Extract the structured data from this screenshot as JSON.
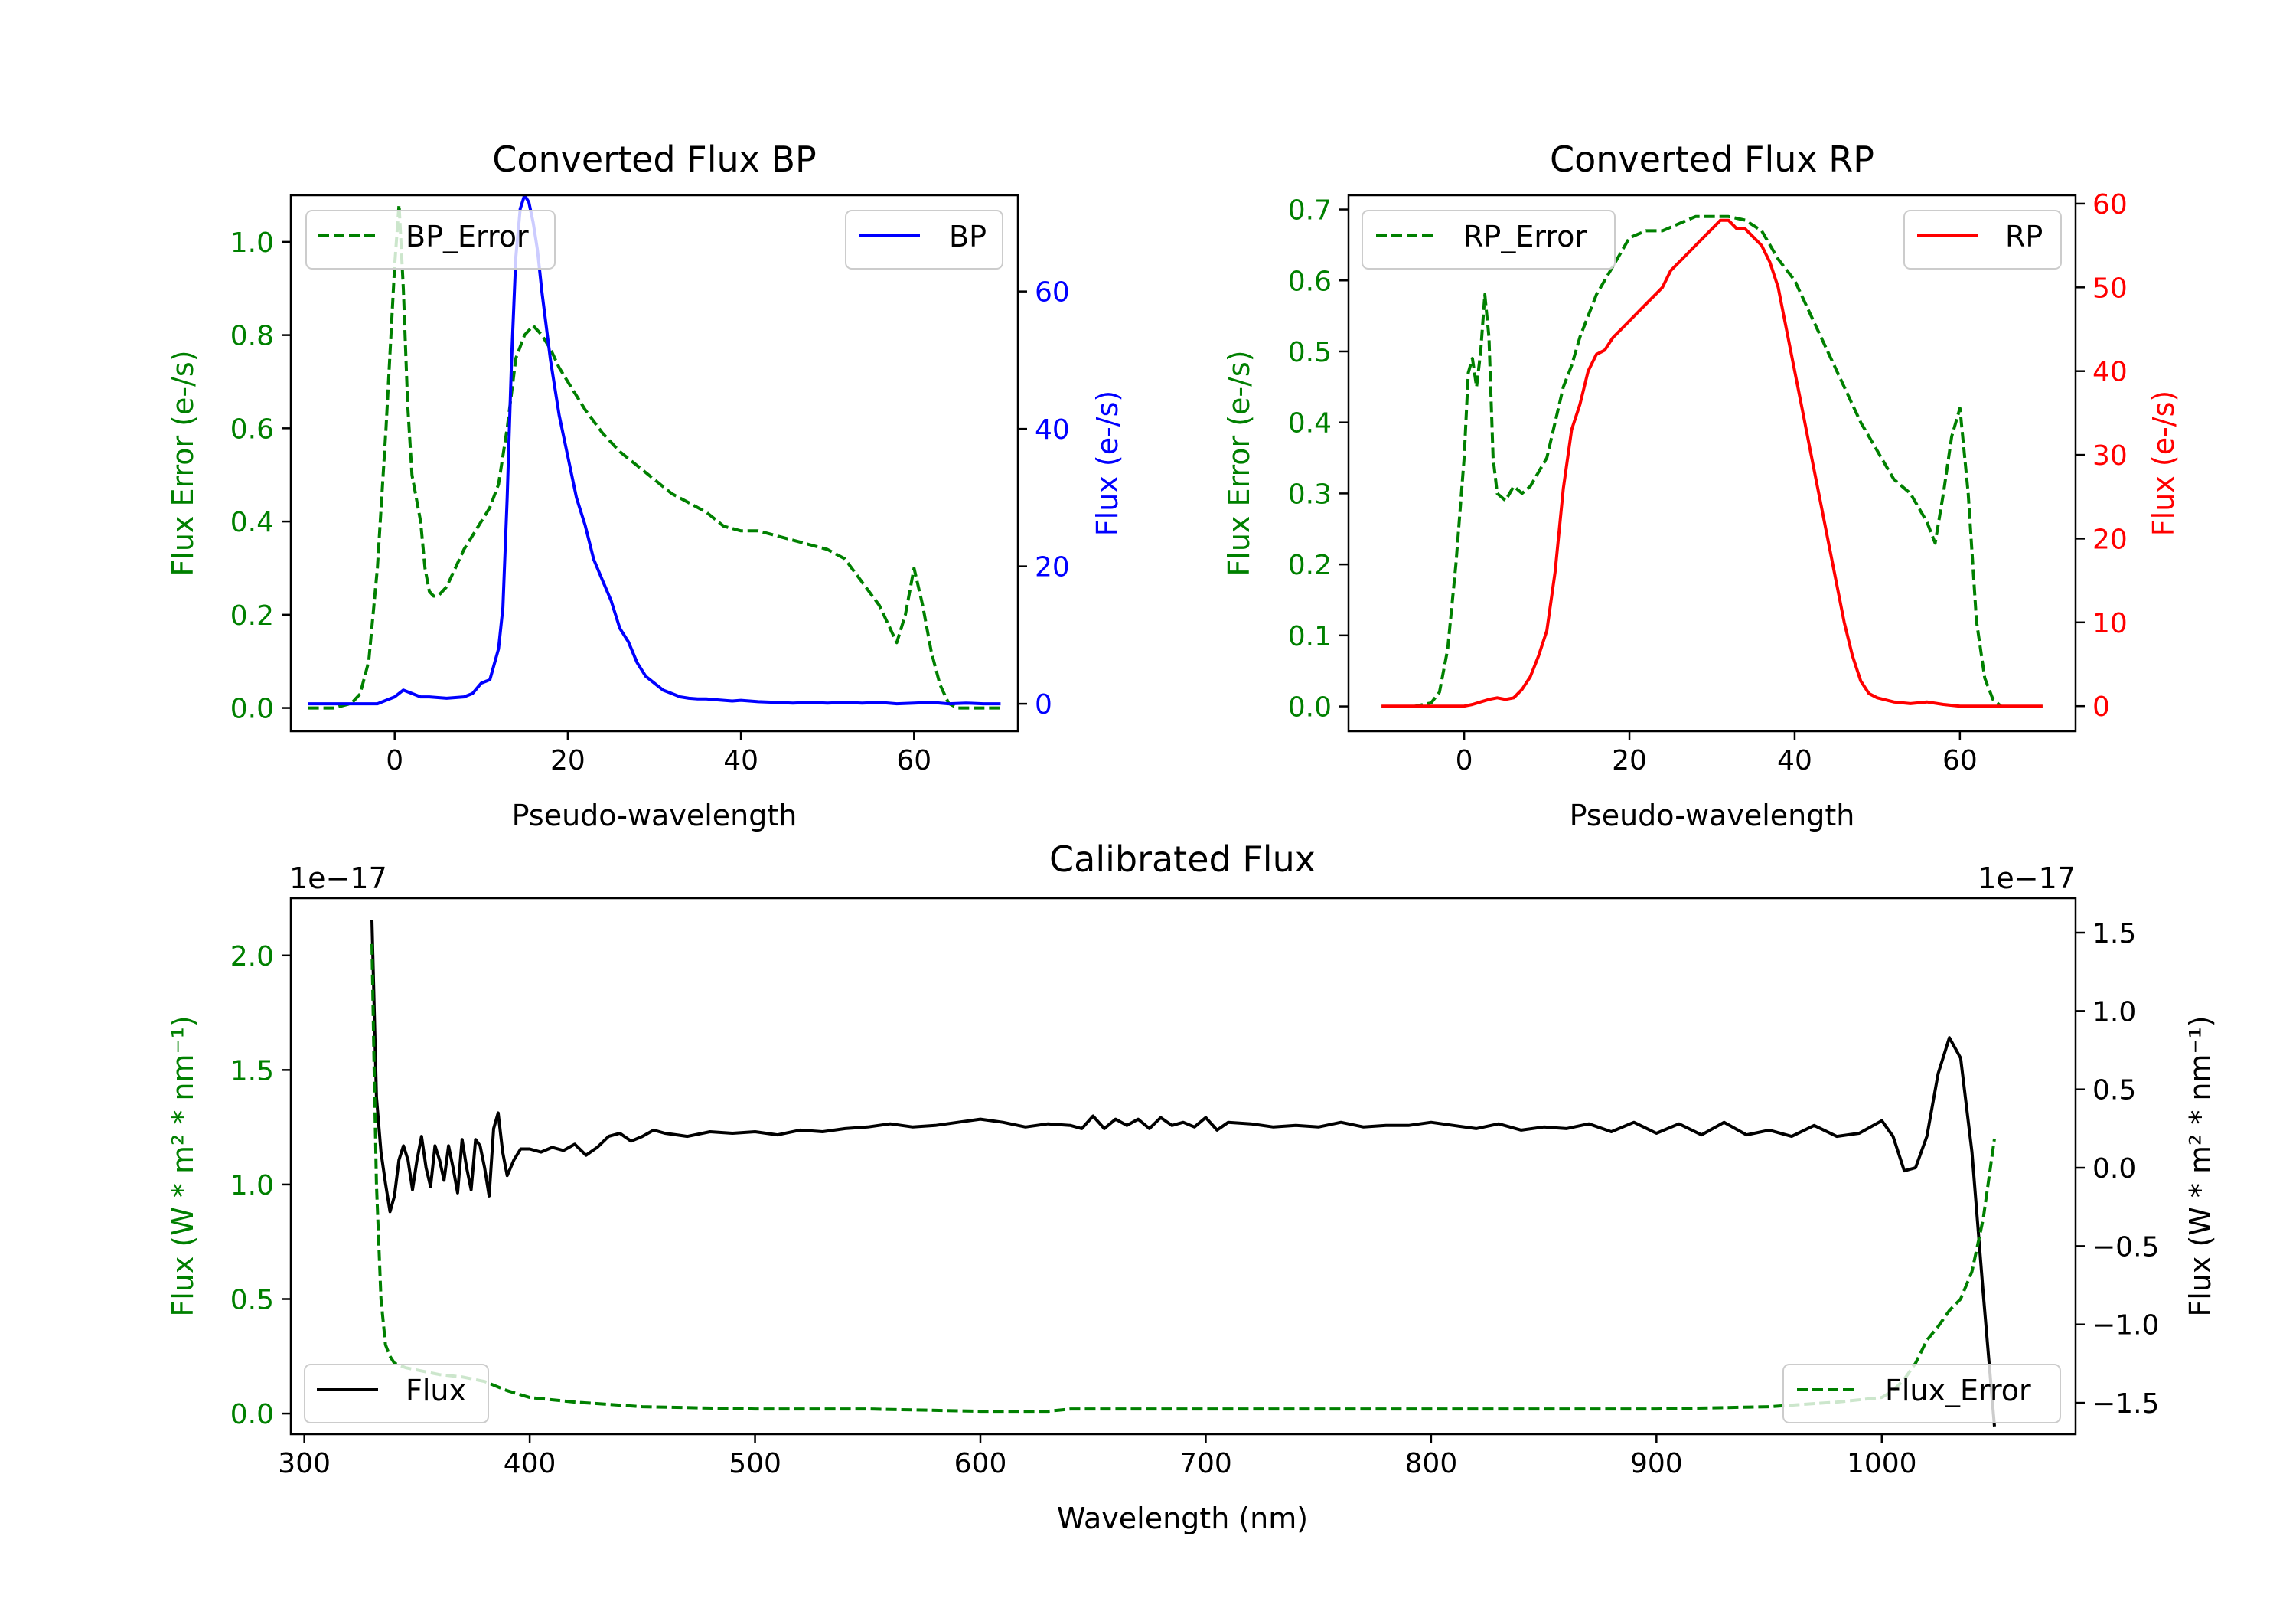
{
  "colors": {
    "error": "#008000",
    "bp": "#0000ff",
    "rp": "#ff0000",
    "flux": "#000000"
  },
  "chart_data": [
    {
      "type": "line",
      "title": "Converted Flux BP",
      "xlabel": "Pseudo-wavelength",
      "ylabel_left": "Flux Error (e-/s)",
      "ylabel_right": "Flux (e-/s)",
      "xlim": [
        -12,
        72
      ],
      "ylim_left": [
        -0.05,
        1.1
      ],
      "ylim_right": [
        -4,
        74
      ],
      "xticks": [
        0,
        20,
        40,
        60
      ],
      "xtick_labels": [
        "0",
        "20",
        "40",
        "60"
      ],
      "yticks_left": [
        0.0,
        0.2,
        0.4,
        0.6,
        0.8,
        1.0
      ],
      "ytick_labels_left": [
        "0.0",
        "0.2",
        "0.4",
        "0.6",
        "0.8",
        "1.0"
      ],
      "yticks_right": [
        0,
        20,
        40,
        60
      ],
      "ytick_labels_right": [
        "0",
        "20",
        "40",
        "60"
      ],
      "legend": [
        {
          "label": "BP_Error",
          "loc": "upper-left",
          "style": "dashed",
          "color": "#008000"
        },
        {
          "label": "BP",
          "loc": "upper-right",
          "style": "solid",
          "color": "#0000ff"
        }
      ],
      "series": [
        {
          "name": "BP_Error",
          "axis": "left",
          "style": "dashed",
          "color": "#008000",
          "x": [
            -10,
            -7,
            -5,
            -4,
            -3,
            -2,
            -1,
            0,
            0.5,
            1,
            1.5,
            2,
            2.5,
            3,
            3.5,
            4,
            4.5,
            5,
            6,
            7,
            8,
            9,
            10,
            11,
            12,
            13,
            14,
            15,
            16,
            17,
            18,
            19,
            20,
            22,
            24,
            26,
            28,
            30,
            32,
            34,
            36,
            38,
            40,
            42,
            44,
            46,
            48,
            50,
            52,
            54,
            56,
            57,
            58,
            59,
            60,
            61,
            62,
            63,
            64,
            65,
            66,
            68,
            70
          ],
          "y": [
            0.0,
            0.0,
            0.01,
            0.03,
            0.1,
            0.3,
            0.6,
            0.95,
            1.08,
            0.9,
            0.65,
            0.5,
            0.45,
            0.4,
            0.3,
            0.25,
            0.24,
            0.24,
            0.26,
            0.3,
            0.34,
            0.37,
            0.4,
            0.43,
            0.48,
            0.6,
            0.75,
            0.8,
            0.82,
            0.8,
            0.77,
            0.73,
            0.7,
            0.64,
            0.59,
            0.55,
            0.52,
            0.49,
            0.46,
            0.44,
            0.42,
            0.39,
            0.38,
            0.38,
            0.37,
            0.36,
            0.35,
            0.34,
            0.32,
            0.27,
            0.22,
            0.18,
            0.14,
            0.2,
            0.3,
            0.22,
            0.12,
            0.05,
            0.01,
            0.0,
            0.0,
            0.0,
            0.0
          ]
        },
        {
          "name": "BP",
          "axis": "right",
          "style": "solid",
          "color": "#0000ff",
          "x": [
            -10,
            -6,
            -2,
            0,
            1,
            2,
            3,
            4,
            6,
            8,
            9,
            10,
            11,
            12,
            12.5,
            13,
            13.5,
            14,
            14.5,
            15,
            15.5,
            16,
            16.5,
            17,
            18,
            19,
            20,
            21,
            22,
            23,
            24,
            25,
            26,
            27,
            28,
            29,
            30,
            31,
            32,
            33,
            34,
            35,
            36,
            37,
            38,
            39,
            40,
            42,
            44,
            46,
            48,
            50,
            52,
            54,
            56,
            58,
            60,
            62,
            64,
            66,
            68,
            70
          ],
          "y": [
            0,
            0,
            0,
            1,
            2,
            1.5,
            1,
            1,
            0.8,
            1,
            1.5,
            3,
            3.5,
            8,
            14,
            30,
            50,
            65,
            72,
            74,
            73,
            70,
            66,
            60,
            50,
            42,
            36,
            30,
            26,
            21,
            18,
            15,
            11,
            9,
            6,
            4,
            3,
            2,
            1.5,
            1,
            0.8,
            0.7,
            0.7,
            0.6,
            0.5,
            0.4,
            0.5,
            0.3,
            0.2,
            0.1,
            0.2,
            0.1,
            0.2,
            0.1,
            0.2,
            0,
            0.1,
            0.2,
            0,
            0.1,
            0,
            0
          ]
        }
      ]
    },
    {
      "type": "line",
      "title": "Converted Flux RP",
      "xlabel": "Pseudo-wavelength",
      "ylabel_left": "Flux Error (e-/s)",
      "ylabel_right": "Flux (e-/s)",
      "xlim": [
        -14,
        74
      ],
      "ylim_left": [
        -0.035,
        0.72
      ],
      "ylim_right": [
        -3,
        61
      ],
      "xticks": [
        0,
        20,
        40,
        60
      ],
      "xtick_labels": [
        "0",
        "20",
        "40",
        "60"
      ],
      "yticks_left": [
        0.0,
        0.1,
        0.2,
        0.3,
        0.4,
        0.5,
        0.6,
        0.7
      ],
      "ytick_labels_left": [
        "0.0",
        "0.1",
        "0.2",
        "0.3",
        "0.4",
        "0.5",
        "0.6",
        "0.7"
      ],
      "yticks_right": [
        0,
        10,
        20,
        30,
        40,
        50,
        60
      ],
      "ytick_labels_right": [
        "0",
        "10",
        "20",
        "30",
        "40",
        "50",
        "60"
      ],
      "legend": [
        {
          "label": "RP_Error",
          "loc": "upper-left",
          "style": "dashed",
          "color": "#008000"
        },
        {
          "label": "RP",
          "loc": "upper-right",
          "style": "solid",
          "color": "#ff0000"
        }
      ],
      "series": [
        {
          "name": "RP_Error",
          "axis": "left",
          "style": "dashed",
          "color": "#008000",
          "x": [
            -10,
            -6,
            -4,
            -3,
            -2,
            -1,
            0,
            0.5,
            1,
            1.5,
            2,
            2.5,
            3,
            3.5,
            4,
            5,
            6,
            7,
            8,
            9,
            10,
            11,
            12,
            13,
            14,
            15,
            16,
            17,
            18,
            19,
            20,
            22,
            24,
            26,
            28,
            30,
            32,
            34,
            36,
            38,
            40,
            42,
            44,
            46,
            48,
            50,
            52,
            54,
            55,
            56,
            57,
            58,
            59,
            60,
            61,
            62,
            63,
            64,
            65,
            66,
            68,
            70
          ],
          "y": [
            0.0,
            0.0,
            0.005,
            0.02,
            0.08,
            0.2,
            0.35,
            0.47,
            0.49,
            0.45,
            0.5,
            0.58,
            0.52,
            0.35,
            0.3,
            0.29,
            0.31,
            0.3,
            0.31,
            0.33,
            0.35,
            0.4,
            0.45,
            0.48,
            0.52,
            0.55,
            0.58,
            0.6,
            0.62,
            0.64,
            0.66,
            0.67,
            0.67,
            0.68,
            0.69,
            0.69,
            0.69,
            0.685,
            0.67,
            0.63,
            0.6,
            0.55,
            0.5,
            0.45,
            0.4,
            0.36,
            0.32,
            0.3,
            0.28,
            0.26,
            0.23,
            0.3,
            0.38,
            0.42,
            0.3,
            0.12,
            0.04,
            0.01,
            0.0,
            0.0,
            0.0,
            0.0
          ]
        },
        {
          "name": "RP",
          "axis": "right",
          "style": "solid",
          "color": "#ff0000",
          "x": [
            -10,
            -6,
            -2,
            0,
            1,
            2,
            3,
            4,
            5,
            6,
            7,
            8,
            9,
            10,
            11,
            12,
            13,
            14,
            15,
            16,
            17,
            18,
            19,
            20,
            21,
            22,
            23,
            24,
            25,
            26,
            27,
            28,
            29,
            30,
            31,
            32,
            33,
            34,
            35,
            36,
            37,
            38,
            39,
            40,
            41,
            42,
            43,
            44,
            45,
            46,
            47,
            48,
            49,
            50,
            52,
            54,
            56,
            58,
            60,
            62,
            64,
            66,
            68,
            70
          ],
          "y": [
            0,
            0,
            0,
            0,
            0.2,
            0.5,
            0.8,
            1,
            0.8,
            1,
            2,
            3.5,
            6,
            9,
            16,
            26,
            33,
            36,
            40,
            42,
            42.5,
            44,
            45,
            46,
            47,
            48,
            49,
            50,
            52,
            53,
            54,
            55,
            56,
            57,
            58,
            58,
            57,
            57,
            56,
            55,
            53,
            50,
            45,
            40,
            35,
            30,
            25,
            20,
            15,
            10,
            6,
            3,
            1.5,
            1,
            0.5,
            0.3,
            0.5,
            0.2,
            0,
            0,
            0,
            0,
            0,
            0
          ]
        }
      ]
    },
    {
      "type": "line",
      "title": "Calibrated Flux",
      "xlabel": "Wavelength (nm)",
      "ylabel_left": "Flux (W * m² * nm⁻¹)",
      "ylabel_right": "Flux (W * m² * nm⁻¹)",
      "offset_left": "1e−17",
      "offset_right": "1e−17",
      "xlim": [
        294,
        1086
      ],
      "ylim_left": [
        -0.09,
        2.25
      ],
      "ylim_right": [
        -1.7,
        1.72
      ],
      "xticks": [
        300,
        400,
        500,
        600,
        700,
        800,
        900,
        1000
      ],
      "xtick_labels": [
        "300",
        "400",
        "500",
        "600",
        "700",
        "800",
        "900",
        "1000"
      ],
      "yticks_left": [
        0.0,
        0.5,
        1.0,
        1.5,
        2.0
      ],
      "ytick_labels_left": [
        "0.0",
        "0.5",
        "1.0",
        "1.5",
        "2.0"
      ],
      "yticks_right": [
        -1.5,
        -1.0,
        -0.5,
        0.0,
        0.5,
        1.0,
        1.5
      ],
      "ytick_labels_right": [
        "−1.5",
        "−1.0",
        "−0.5",
        "0.0",
        "0.5",
        "1.0",
        "1.5"
      ],
      "legend": [
        {
          "label": "Flux",
          "loc": "lower-left",
          "style": "solid",
          "color": "#000000"
        },
        {
          "label": "Flux_Error",
          "loc": "lower-right",
          "style": "dashed",
          "color": "#008000"
        }
      ],
      "series": [
        {
          "name": "Flux",
          "axis": "right",
          "style": "solid",
          "color": "#000000",
          "x": [
            330,
            332,
            334,
            336,
            338,
            340,
            342,
            344,
            346,
            348,
            350,
            352,
            354,
            356,
            358,
            360,
            362,
            364,
            366,
            368,
            370,
            372,
            374,
            376,
            378,
            380,
            382,
            384,
            386,
            388,
            390,
            393,
            396,
            400,
            405,
            410,
            415,
            420,
            425,
            430,
            435,
            440,
            445,
            450,
            455,
            460,
            470,
            480,
            490,
            500,
            510,
            520,
            530,
            540,
            550,
            560,
            570,
            580,
            590,
            600,
            610,
            620,
            630,
            640,
            645,
            650,
            655,
            660,
            665,
            670,
            675,
            680,
            685,
            690,
            695,
            700,
            705,
            710,
            720,
            730,
            740,
            750,
            760,
            770,
            780,
            790,
            800,
            810,
            820,
            830,
            840,
            850,
            860,
            870,
            880,
            890,
            900,
            910,
            920,
            930,
            940,
            950,
            960,
            970,
            980,
            990,
            1000,
            1005,
            1010,
            1015,
            1020,
            1025,
            1030,
            1035,
            1040,
            1045,
            1050
          ],
          "y": [
            1.58,
            0.45,
            0.1,
            -0.1,
            -0.28,
            -0.18,
            0.05,
            0.14,
            0.05,
            -0.14,
            0.05,
            0.2,
            0.0,
            -0.12,
            0.14,
            0.05,
            -0.08,
            0.14,
            0.0,
            -0.16,
            0.18,
            0.0,
            -0.14,
            0.18,
            0.14,
            0.0,
            -0.18,
            0.25,
            0.35,
            0.1,
            -0.05,
            0.05,
            0.12,
            0.12,
            0.1,
            0.13,
            0.11,
            0.15,
            0.08,
            0.13,
            0.2,
            0.22,
            0.17,
            0.2,
            0.24,
            0.22,
            0.2,
            0.23,
            0.22,
            0.23,
            0.21,
            0.24,
            0.23,
            0.25,
            0.26,
            0.28,
            0.26,
            0.27,
            0.29,
            0.31,
            0.29,
            0.26,
            0.28,
            0.27,
            0.25,
            0.33,
            0.25,
            0.31,
            0.27,
            0.31,
            0.25,
            0.32,
            0.27,
            0.29,
            0.26,
            0.32,
            0.24,
            0.29,
            0.28,
            0.26,
            0.27,
            0.26,
            0.29,
            0.26,
            0.27,
            0.27,
            0.29,
            0.27,
            0.25,
            0.28,
            0.24,
            0.26,
            0.25,
            0.28,
            0.23,
            0.29,
            0.22,
            0.28,
            0.21,
            0.29,
            0.21,
            0.24,
            0.2,
            0.27,
            0.2,
            0.22,
            0.3,
            0.2,
            -0.02,
            0.0,
            0.2,
            0.6,
            0.83,
            0.7,
            0.1,
            -0.8,
            -1.65
          ]
        },
        {
          "name": "Flux_Error",
          "axis": "left",
          "style": "dashed",
          "color": "#008000",
          "x": [
            330,
            331,
            332,
            334,
            336,
            338,
            340,
            345,
            350,
            355,
            360,
            370,
            380,
            390,
            400,
            420,
            450,
            500,
            550,
            600,
            630,
            640,
            660,
            700,
            750,
            800,
            850,
            900,
            950,
            980,
            1000,
            1005,
            1010,
            1015,
            1020,
            1025,
            1030,
            1035,
            1040,
            1045,
            1050
          ],
          "y": [
            2.05,
            1.5,
            1.0,
            0.5,
            0.3,
            0.25,
            0.22,
            0.2,
            0.19,
            0.18,
            0.17,
            0.16,
            0.14,
            0.1,
            0.07,
            0.05,
            0.03,
            0.02,
            0.02,
            0.01,
            0.01,
            0.02,
            0.02,
            0.02,
            0.02,
            0.02,
            0.02,
            0.02,
            0.03,
            0.05,
            0.07,
            0.1,
            0.15,
            0.22,
            0.32,
            0.38,
            0.45,
            0.5,
            0.62,
            0.85,
            1.2
          ]
        }
      ]
    }
  ]
}
